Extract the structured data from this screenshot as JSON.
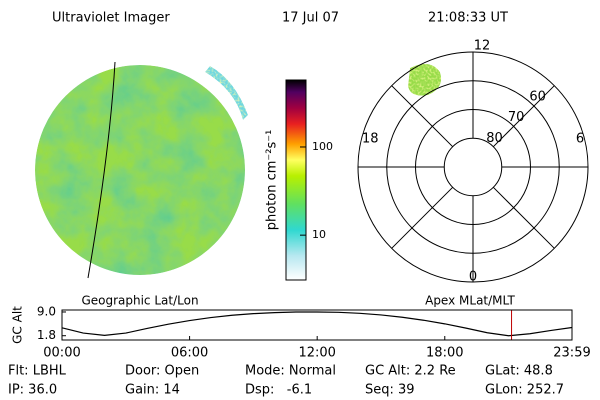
{
  "header": {
    "instrument": "Ultraviolet Imager",
    "date": "17 Jul 07",
    "time": "21:08:33 UT"
  },
  "colorbar": {
    "label": "photon cm⁻²s⁻¹",
    "log": true,
    "lim": [
      3.1,
      575
    ],
    "ticks": [
      10,
      100
    ]
  },
  "polar": {
    "mlt_labels": [
      "12",
      "18",
      "6",
      "0"
    ],
    "rlim": [
      90,
      50
    ],
    "lat_rings": [
      80,
      70,
      60
    ]
  },
  "chart_data": {
    "type": "line",
    "left_label": "Geographic Lat/Lon",
    "right_label": "Apex MLat/MLT",
    "ylabel": "GC Alt",
    "xlim": [
      0,
      23.983
    ],
    "xticks": [
      {
        "value": 0,
        "label": "00:00"
      },
      {
        "value": 6,
        "label": "06:00"
      },
      {
        "value": 12,
        "label": "12:00"
      },
      {
        "value": 18,
        "label": "18:00"
      },
      {
        "value": 23.983,
        "label": "23:59"
      }
    ],
    "ylim": [
      0.5,
      9.6
    ],
    "yticks": [
      {
        "value": 9,
        "label": "9.0"
      },
      1.8
    ],
    "x": [
      0,
      1,
      2,
      3,
      4,
      5,
      6,
      7,
      8,
      9,
      10,
      11,
      12,
      13,
      14,
      15,
      16,
      17,
      18,
      19,
      20,
      21,
      22,
      23,
      23.983
    ],
    "series": [
      {
        "color": "#000000",
        "values": [
          4.2,
          2.6,
          1.9,
          2.6,
          4.0,
          5.3,
          6.4,
          7.3,
          8.0,
          8.5,
          8.8,
          9.0,
          9.0,
          8.9,
          8.6,
          8.1,
          7.4,
          6.5,
          5.4,
          4.1,
          2.7,
          1.8,
          2.4,
          3.4,
          4.3
        ]
      }
    ],
    "marker_x": 21.14,
    "marker_color": "#c00000"
  },
  "footer": {
    "rows": [
      [
        "Flt: LBHL",
        "Door: Open",
        "Mode: Normal",
        "GC Alt: 2.2 Re",
        "GLat: 48.8"
      ],
      [
        "IP: 36.0",
        "Gain: 14",
        "Dsp:   -6.1",
        "Seq: 39",
        "GLon: 252.7"
      ]
    ]
  }
}
